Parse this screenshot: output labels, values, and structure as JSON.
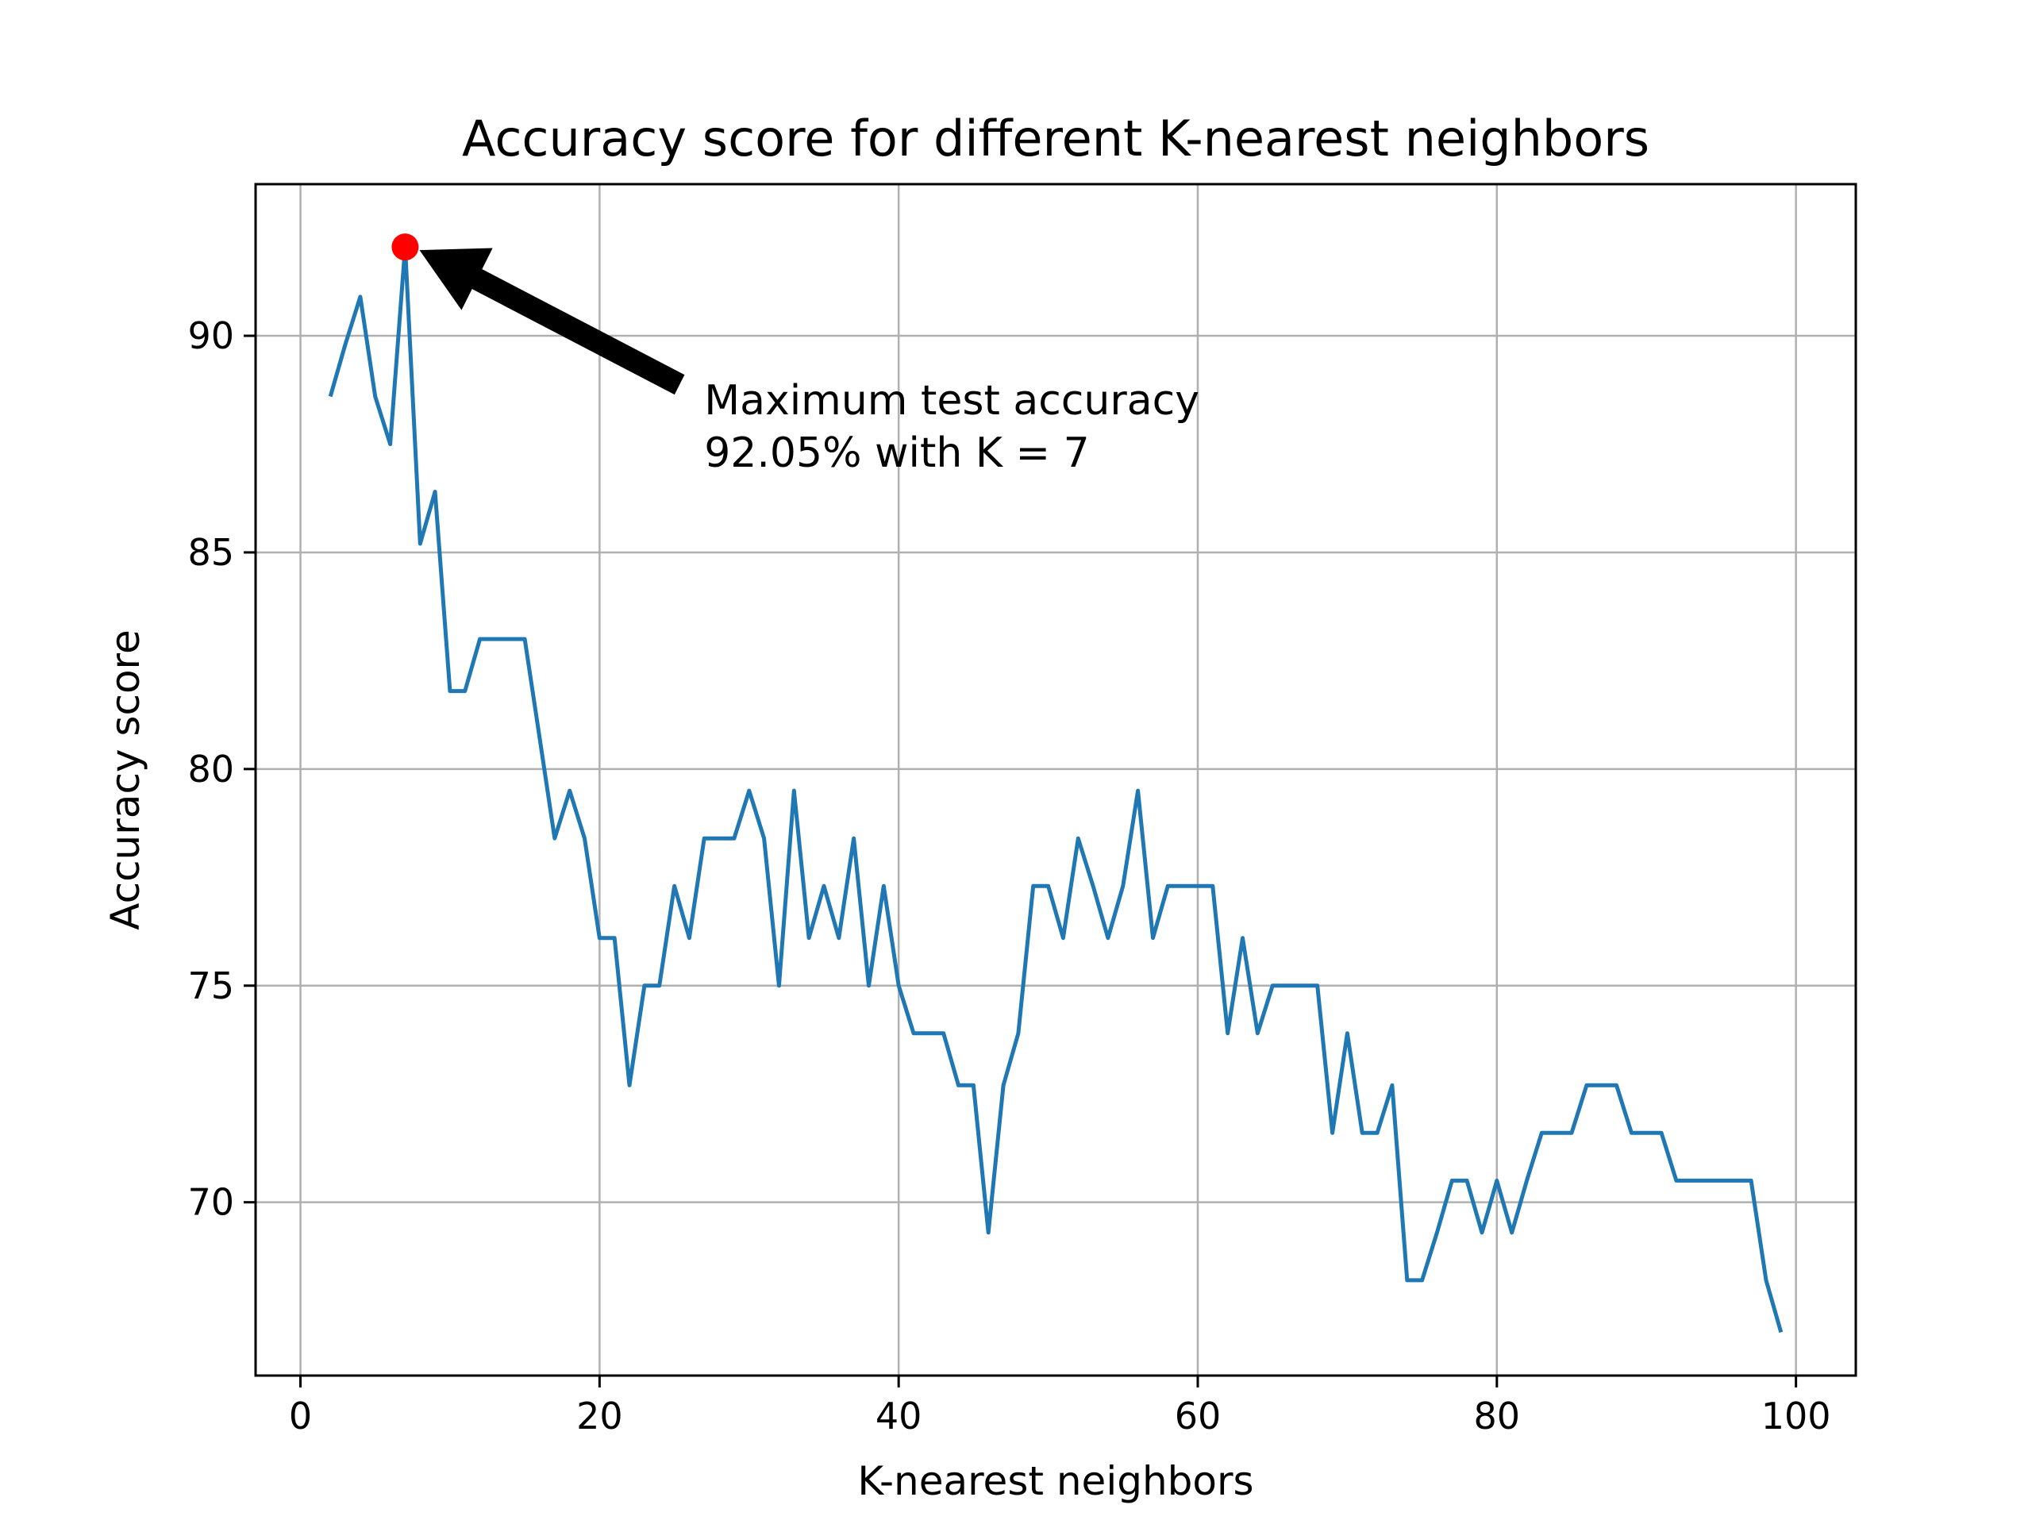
{
  "chart_data": {
    "type": "line",
    "title": "Accuracy score for different K-nearest neighbors",
    "xlabel": "K-nearest neighbors",
    "ylabel": "Accuracy score",
    "xlim": [
      -3,
      104
    ],
    "ylim": [
      66.0,
      93.5
    ],
    "xticks": [
      0,
      20,
      40,
      60,
      80,
      100
    ],
    "yticks": [
      70,
      75,
      80,
      85,
      90
    ],
    "grid": true,
    "series": [
      {
        "name": "",
        "color": "#1f77b4",
        "x": [
          2,
          3,
          4,
          5,
          6,
          7,
          8,
          9,
          10,
          11,
          12,
          13,
          14,
          15,
          16,
          17,
          18,
          19,
          20,
          21,
          22,
          23,
          24,
          25,
          26,
          27,
          28,
          29,
          30,
          31,
          32,
          33,
          34,
          35,
          36,
          37,
          38,
          39,
          40,
          41,
          42,
          43,
          44,
          45,
          46,
          47,
          48,
          49,
          50,
          51,
          52,
          53,
          54,
          55,
          56,
          57,
          58,
          59,
          60,
          61,
          62,
          63,
          64,
          65,
          66,
          67,
          68,
          69,
          70,
          71,
          72,
          73,
          74,
          75,
          76,
          77,
          78,
          79,
          80,
          81,
          82,
          83,
          84,
          85,
          86,
          87,
          88,
          89,
          90,
          91,
          92,
          93,
          94,
          95,
          96,
          97,
          98,
          99
        ],
        "y": [
          88.6,
          89.8,
          90.9,
          88.6,
          87.5,
          92.05,
          85.2,
          86.4,
          81.8,
          81.8,
          83.0,
          83.0,
          83.0,
          83.0,
          80.7,
          78.4,
          79.5,
          78.4,
          76.1,
          76.1,
          72.7,
          75.0,
          75.0,
          77.3,
          76.1,
          78.4,
          78.4,
          78.4,
          79.5,
          78.4,
          75.0,
          79.5,
          76.1,
          77.3,
          76.1,
          78.4,
          75.0,
          77.3,
          75.0,
          73.9,
          73.9,
          73.9,
          72.7,
          72.7,
          69.3,
          72.7,
          73.9,
          77.3,
          77.3,
          76.1,
          78.4,
          77.3,
          76.1,
          77.3,
          79.5,
          76.1,
          77.3,
          77.3,
          77.3,
          77.3,
          73.9,
          76.1,
          73.9,
          75.0,
          75.0,
          75.0,
          75.0,
          71.6,
          73.9,
          71.6,
          71.6,
          72.7,
          68.2,
          68.2,
          69.3,
          70.5,
          70.5,
          69.3,
          70.5,
          69.3,
          70.5,
          71.6,
          71.6,
          71.6,
          72.7,
          72.7,
          72.7,
          71.6,
          71.6,
          71.6,
          70.5,
          70.5,
          70.5,
          70.5,
          70.5,
          70.5,
          68.2,
          67.0
        ]
      }
    ],
    "highlight_point": {
      "x": 7,
      "y": 92.05,
      "color": "#ff0000"
    },
    "annotation": {
      "line1": "Maximum test accuracy",
      "line2": "92.05% with K = 7",
      "text_x": 27,
      "text_y": 88.0
    }
  }
}
